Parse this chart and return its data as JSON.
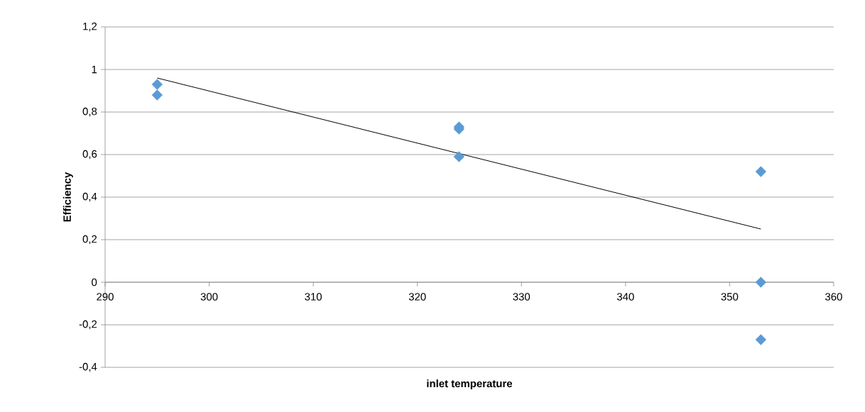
{
  "chart_data": {
    "type": "scatter",
    "xlabel": "inlet temperature",
    "ylabel": "Efficiency",
    "xlim": [
      290,
      360
    ],
    "ylim": [
      -0.4,
      1.2
    ],
    "xticks": [
      290,
      300,
      310,
      320,
      330,
      340,
      350,
      360
    ],
    "yticks": [
      {
        "value": -0.4,
        "label": "-0,4"
      },
      {
        "value": -0.2,
        "label": "-0,2"
      },
      0,
      {
        "value": 0.2,
        "label": "0,2"
      },
      {
        "value": 0.4,
        "label": "0,4"
      },
      {
        "value": 0.6,
        "label": "0,6"
      },
      {
        "value": 0.8,
        "label": "0,8"
      },
      1,
      {
        "value": 1.2,
        "label": "1,2"
      }
    ],
    "grid": "y",
    "marker": "diamond",
    "series": [
      {
        "color": "#5b9bd5",
        "x": [
          295,
          295,
          324,
          324,
          324,
          353,
          353,
          353
        ],
        "values": [
          0.93,
          0.88,
          0.73,
          0.72,
          0.59,
          0.52,
          0,
          -0.27
        ]
      },
      {
        "type": "line",
        "color": "#000000",
        "marker": "none",
        "line_style": "solid",
        "x": [
          295,
          353
        ],
        "values": [
          0.96,
          0.25
        ]
      }
    ]
  }
}
